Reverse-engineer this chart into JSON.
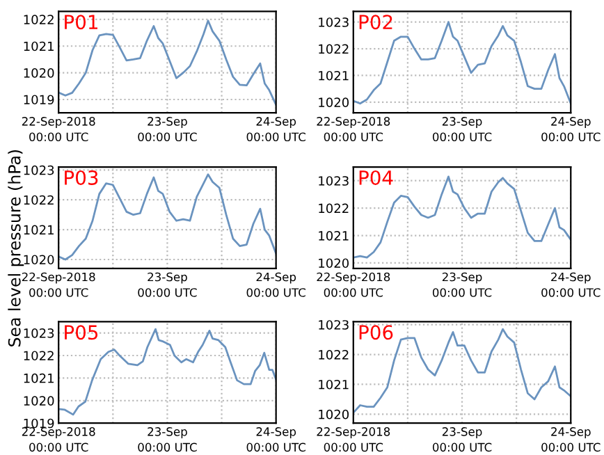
{
  "chart_data": [
    {
      "type": "line",
      "title": "P01",
      "x": [
        "2018-09-22T00:00",
        "2018-09-22T01:30",
        "2018-09-22T03:00",
        "2018-09-22T04:30",
        "2018-09-22T06:00",
        "2018-09-22T07:30",
        "2018-09-22T09:00",
        "2018-09-22T10:30",
        "2018-09-22T12:00",
        "2018-09-22T13:30",
        "2018-09-22T15:00",
        "2018-09-22T16:30",
        "2018-09-22T18:00",
        "2018-09-22T19:30",
        "2018-09-22T21:00",
        "2018-09-22T22:00",
        "2018-09-22T23:00",
        "2018-09-23T00:30",
        "2018-09-23T02:00",
        "2018-09-23T03:30",
        "2018-09-23T05:00",
        "2018-09-23T06:30",
        "2018-09-23T08:00",
        "2018-09-23T09:00",
        "2018-09-23T10:00",
        "2018-09-23T11:30",
        "2018-09-23T13:00",
        "2018-09-23T14:30",
        "2018-09-23T16:00",
        "2018-09-23T17:30",
        "2018-09-23T19:00",
        "2018-09-23T20:30",
        "2018-09-23T21:30",
        "2018-09-23T22:30",
        "2018-09-24T00:00"
      ],
      "series": [
        {
          "color": "#6a93bf",
          "values": [
            1019.26,
            1019.15,
            1019.25,
            1019.6,
            1020.0,
            1020.85,
            1021.4,
            1021.45,
            1021.42,
            1020.95,
            1020.46,
            1020.5,
            1020.55,
            1021.2,
            1021.75,
            1021.3,
            1021.1,
            1020.45,
            1019.8,
            1020.0,
            1020.25,
            1020.8,
            1021.45,
            1021.95,
            1021.55,
            1021.2,
            1020.5,
            1019.85,
            1019.55,
            1019.53,
            1019.95,
            1020.35,
            1019.6,
            1019.35,
            1018.8
          ]
        }
      ],
      "xlim": [
        "2018-09-22T00:00",
        "2018-09-24T00:00"
      ],
      "xticks": [
        {
          "value": "2018-09-22T00:00",
          "label": "22-Sep-2018\n00:00 UTC"
        },
        {
          "value": "2018-09-22T12:00",
          "label": null
        },
        {
          "value": "2018-09-23T00:00",
          "label": "23-Sep\n00:00 UTC"
        },
        {
          "value": "2018-09-23T12:00",
          "label": null
        },
        {
          "value": "2018-09-24T00:00",
          "label": "24-Sep\n00:00 UTC"
        }
      ],
      "ylim": [
        1018.5,
        1022.3
      ],
      "yticks": [
        1019,
        1020,
        1021,
        1022
      ],
      "grid": true,
      "line_style": "solid"
    },
    {
      "type": "line",
      "title": "P02",
      "x": [
        "2018-09-22T00:00",
        "2018-09-22T01:30",
        "2018-09-22T03:00",
        "2018-09-22T04:30",
        "2018-09-22T06:00",
        "2018-09-22T07:30",
        "2018-09-22T09:00",
        "2018-09-22T10:30",
        "2018-09-22T12:00",
        "2018-09-22T13:30",
        "2018-09-22T15:00",
        "2018-09-22T16:30",
        "2018-09-22T18:00",
        "2018-09-22T19:30",
        "2018-09-22T21:00",
        "2018-09-22T22:00",
        "2018-09-22T23:00",
        "2018-09-23T00:30",
        "2018-09-23T02:00",
        "2018-09-23T03:30",
        "2018-09-23T05:00",
        "2018-09-23T06:30",
        "2018-09-23T08:00",
        "2018-09-23T09:00",
        "2018-09-23T10:00",
        "2018-09-23T11:30",
        "2018-09-23T13:00",
        "2018-09-23T14:30",
        "2018-09-23T16:00",
        "2018-09-23T17:30",
        "2018-09-23T19:00",
        "2018-09-23T20:30",
        "2018-09-23T21:30",
        "2018-09-23T22:30",
        "2018-09-24T00:00"
      ],
      "series": [
        {
          "color": "#6a93bf",
          "values": [
            1020.05,
            1019.95,
            1020.1,
            1020.45,
            1020.7,
            1021.5,
            1022.3,
            1022.45,
            1022.45,
            1022.0,
            1021.6,
            1021.6,
            1021.65,
            1022.3,
            1023.0,
            1022.45,
            1022.3,
            1021.7,
            1021.1,
            1021.4,
            1021.45,
            1022.1,
            1022.5,
            1022.85,
            1022.5,
            1022.3,
            1021.5,
            1020.6,
            1020.5,
            1020.5,
            1021.2,
            1021.8,
            1020.9,
            1020.6,
            1019.95
          ]
        }
      ],
      "xlim": [
        "2018-09-22T00:00",
        "2018-09-24T00:00"
      ],
      "xticks": [
        {
          "value": "2018-09-22T00:00",
          "label": "22-Sep-2018\n00:00 UTC"
        },
        {
          "value": "2018-09-22T12:00",
          "label": null
        },
        {
          "value": "2018-09-23T00:00",
          "label": "23-Sep\n00:00 UTC"
        },
        {
          "value": "2018-09-23T12:00",
          "label": null
        },
        {
          "value": "2018-09-24T00:00",
          "label": "24-Sep\n00:00 UTC"
        }
      ],
      "ylim": [
        1019.6,
        1023.4
      ],
      "yticks": [
        1020,
        1021,
        1022,
        1023
      ],
      "grid": true,
      "line_style": "solid"
    },
    {
      "type": "line",
      "title": "P03",
      "ylabel": "Sea level pressure (hPa)",
      "x": [
        "2018-09-22T00:00",
        "2018-09-22T01:30",
        "2018-09-22T03:00",
        "2018-09-22T04:30",
        "2018-09-22T06:00",
        "2018-09-22T07:30",
        "2018-09-22T09:00",
        "2018-09-22T10:30",
        "2018-09-22T12:00",
        "2018-09-22T13:30",
        "2018-09-22T15:00",
        "2018-09-22T16:30",
        "2018-09-22T18:00",
        "2018-09-22T19:30",
        "2018-09-22T21:00",
        "2018-09-22T22:00",
        "2018-09-22T23:00",
        "2018-09-23T00:30",
        "2018-09-23T02:00",
        "2018-09-23T03:30",
        "2018-09-23T05:00",
        "2018-09-23T06:30",
        "2018-09-23T08:00",
        "2018-09-23T09:00",
        "2018-09-23T10:00",
        "2018-09-23T11:30",
        "2018-09-23T13:00",
        "2018-09-23T14:30",
        "2018-09-23T16:00",
        "2018-09-23T17:30",
        "2018-09-23T19:00",
        "2018-09-23T20:30",
        "2018-09-23T21:30",
        "2018-09-23T22:30",
        "2018-09-24T00:00"
      ],
      "series": [
        {
          "color": "#6a93bf",
          "values": [
            1020.1,
            1020.0,
            1020.15,
            1020.45,
            1020.7,
            1021.3,
            1022.2,
            1022.55,
            1022.5,
            1022.05,
            1021.6,
            1021.5,
            1021.55,
            1022.2,
            1022.75,
            1022.3,
            1022.2,
            1021.6,
            1021.3,
            1021.35,
            1021.3,
            1022.1,
            1022.55,
            1022.85,
            1022.6,
            1022.4,
            1021.5,
            1020.7,
            1020.45,
            1020.5,
            1021.2,
            1021.7,
            1021.0,
            1020.8,
            1020.2
          ]
        }
      ],
      "xlim": [
        "2018-09-22T00:00",
        "2018-09-24T00:00"
      ],
      "xticks": [
        {
          "value": "2018-09-22T00:00",
          "label": "22-Sep-2018\n00:00 UTC"
        },
        {
          "value": "2018-09-22T12:00",
          "label": null
        },
        {
          "value": "2018-09-23T00:00",
          "label": "23-Sep\n00:00 UTC"
        },
        {
          "value": "2018-09-23T12:00",
          "label": null
        },
        {
          "value": "2018-09-24T00:00",
          "label": "24-Sep\n00:00 UTC"
        }
      ],
      "ylim": [
        1019.7,
        1023.1
      ],
      "yticks": [
        1020,
        1021,
        1022,
        1023
      ],
      "grid": true,
      "line_style": "solid"
    },
    {
      "type": "line",
      "title": "P04",
      "x": [
        "2018-09-22T00:00",
        "2018-09-22T01:30",
        "2018-09-22T03:00",
        "2018-09-22T04:30",
        "2018-09-22T06:00",
        "2018-09-22T07:30",
        "2018-09-22T09:00",
        "2018-09-22T10:30",
        "2018-09-22T12:00",
        "2018-09-22T13:30",
        "2018-09-22T15:00",
        "2018-09-22T16:30",
        "2018-09-22T18:00",
        "2018-09-22T19:30",
        "2018-09-22T21:00",
        "2018-09-22T22:00",
        "2018-09-22T23:00",
        "2018-09-23T00:30",
        "2018-09-23T02:00",
        "2018-09-23T03:30",
        "2018-09-23T05:00",
        "2018-09-23T06:30",
        "2018-09-23T08:00",
        "2018-09-23T09:00",
        "2018-09-23T10:00",
        "2018-09-23T11:30",
        "2018-09-23T13:00",
        "2018-09-23T14:30",
        "2018-09-23T16:00",
        "2018-09-23T17:30",
        "2018-09-23T19:00",
        "2018-09-23T20:30",
        "2018-09-23T21:30",
        "2018-09-23T22:30",
        "2018-09-24T00:00"
      ],
      "series": [
        {
          "color": "#6a93bf",
          "values": [
            1020.2,
            1020.25,
            1020.2,
            1020.4,
            1020.75,
            1021.5,
            1022.2,
            1022.45,
            1022.4,
            1022.05,
            1021.75,
            1021.65,
            1021.75,
            1022.5,
            1023.15,
            1022.6,
            1022.5,
            1022.0,
            1021.65,
            1021.8,
            1021.8,
            1022.6,
            1022.95,
            1023.1,
            1022.9,
            1022.7,
            1021.9,
            1021.1,
            1020.8,
            1020.8,
            1021.4,
            1022.0,
            1021.3,
            1021.2,
            1020.85
          ]
        }
      ],
      "xlim": [
        "2018-09-22T00:00",
        "2018-09-24T00:00"
      ],
      "xticks": [
        {
          "value": "2018-09-22T00:00",
          "label": "22-Sep-2018\n00:00 UTC"
        },
        {
          "value": "2018-09-22T12:00",
          "label": null
        },
        {
          "value": "2018-09-23T00:00",
          "label": "23-Sep\n00:00 UTC"
        },
        {
          "value": "2018-09-23T12:00",
          "label": null
        },
        {
          "value": "2018-09-24T00:00",
          "label": "24-Sep\n00:00 UTC"
        }
      ],
      "ylim": [
        1019.8,
        1023.5
      ],
      "yticks": [
        1020,
        1021,
        1022,
        1023
      ],
      "grid": true,
      "line_style": "solid"
    },
    {
      "type": "line",
      "title": "P05",
      "x": [
        "2018-09-22T00:00",
        "2018-09-22T01:18",
        "2018-09-22T03:12",
        "2018-09-22T04:24",
        "2018-09-22T05:54",
        "2018-09-22T07:24",
        "2018-09-22T09:18",
        "2018-09-22T11:00",
        "2018-09-22T12:18",
        "2018-09-22T13:30",
        "2018-09-22T15:24",
        "2018-09-22T17:24",
        "2018-09-22T18:36",
        "2018-09-22T19:36",
        "2018-09-22T21:24",
        "2018-09-22T22:06",
        "2018-09-22T23:06",
        "2018-09-23T00:36",
        "2018-09-23T01:36",
        "2018-09-23T03:06",
        "2018-09-23T04:12",
        "2018-09-23T05:42",
        "2018-09-23T06:48",
        "2018-09-23T07:48",
        "2018-09-23T09:18",
        "2018-09-23T10:00",
        "2018-09-23T11:18",
        "2018-09-23T12:48",
        "2018-09-23T13:54",
        "2018-09-23T15:24",
        "2018-09-23T16:54",
        "2018-09-23T18:24",
        "2018-09-23T19:24",
        "2018-09-23T20:24",
        "2018-09-23T21:24",
        "2018-09-23T22:30",
        "2018-09-23T23:12",
        "2018-09-24T00:00"
      ],
      "series": [
        {
          "color": "#6a93bf",
          "values": [
            1019.63,
            1019.6,
            1019.38,
            1019.74,
            1019.95,
            1020.9,
            1021.84,
            1022.16,
            1022.26,
            1021.99,
            1021.63,
            1021.57,
            1021.74,
            1022.37,
            1023.17,
            1022.68,
            1022.62,
            1022.47,
            1021.99,
            1021.7,
            1021.84,
            1021.7,
            1022.16,
            1022.47,
            1023.1,
            1022.75,
            1022.68,
            1022.37,
            1021.74,
            1020.9,
            1020.73,
            1020.73,
            1021.32,
            1021.57,
            1022.12,
            1021.36,
            1021.36,
            1020.94
          ]
        }
      ],
      "xlim": [
        "2018-09-22T00:00",
        "2018-09-24T00:00"
      ],
      "xticks": [
        {
          "value": "2018-09-22T00:00",
          "label": "22-Sep-2018\n00:00 UTC"
        },
        {
          "value": "2018-09-22T12:00",
          "label": null
        },
        {
          "value": "2018-09-23T00:00",
          "label": "23-Sep\n00:00 UTC"
        },
        {
          "value": "2018-09-23T12:00",
          "label": null
        },
        {
          "value": "2018-09-24T00:00",
          "label": "24-Sep\n00:00 UTC"
        }
      ],
      "ylim": [
        1019,
        1023.5
      ],
      "yticks": [
        1019,
        1020,
        1021,
        1022,
        1023
      ],
      "grid": true,
      "line_style": "solid"
    },
    {
      "type": "line",
      "title": "P06",
      "x": [
        "2018-09-22T00:00",
        "2018-09-22T01:30",
        "2018-09-22T03:00",
        "2018-09-22T04:30",
        "2018-09-22T06:00",
        "2018-09-22T07:30",
        "2018-09-22T09:00",
        "2018-09-22T10:30",
        "2018-09-22T12:00",
        "2018-09-22T13:30",
        "2018-09-22T15:00",
        "2018-09-22T16:30",
        "2018-09-22T18:00",
        "2018-09-22T19:30",
        "2018-09-22T21:00",
        "2018-09-22T22:00",
        "2018-09-22T23:00",
        "2018-09-23T00:30",
        "2018-09-23T02:00",
        "2018-09-23T03:30",
        "2018-09-23T05:00",
        "2018-09-23T06:30",
        "2018-09-23T08:00",
        "2018-09-23T09:00",
        "2018-09-23T10:00",
        "2018-09-23T11:30",
        "2018-09-23T13:00",
        "2018-09-23T14:30",
        "2018-09-23T16:00",
        "2018-09-23T17:30",
        "2018-09-23T19:00",
        "2018-09-23T20:30",
        "2018-09-23T21:30",
        "2018-09-23T22:30",
        "2018-09-24T00:00"
      ],
      "series": [
        {
          "color": "#6a93bf",
          "values": [
            1020.05,
            1020.3,
            1020.25,
            1020.25,
            1020.55,
            1020.9,
            1021.8,
            1022.5,
            1022.55,
            1022.55,
            1021.9,
            1021.5,
            1021.3,
            1021.8,
            1022.4,
            1022.75,
            1022.3,
            1022.3,
            1021.8,
            1021.4,
            1021.4,
            1022.1,
            1022.5,
            1022.85,
            1022.6,
            1022.4,
            1021.5,
            1020.7,
            1020.5,
            1020.9,
            1021.1,
            1021.6,
            1020.9,
            1020.8,
            1020.6
          ]
        }
      ],
      "xlim": [
        "2018-09-22T00:00",
        "2018-09-24T00:00"
      ],
      "xticks": [
        {
          "value": "2018-09-22T00:00",
          "label": "22-Sep-2018\n00:00 UTC"
        },
        {
          "value": "2018-09-22T12:00",
          "label": null
        },
        {
          "value": "2018-09-23T00:00",
          "label": "23-Sep\n00:00 UTC"
        },
        {
          "value": "2018-09-23T12:00",
          "label": null
        },
        {
          "value": "2018-09-24T00:00",
          "label": "24-Sep\n00:00 UTC"
        }
      ],
      "ylim": [
        1019.7,
        1023.1
      ],
      "yticks": [
        1020,
        1021,
        1022,
        1023
      ],
      "grid": true,
      "line_style": "solid"
    }
  ]
}
